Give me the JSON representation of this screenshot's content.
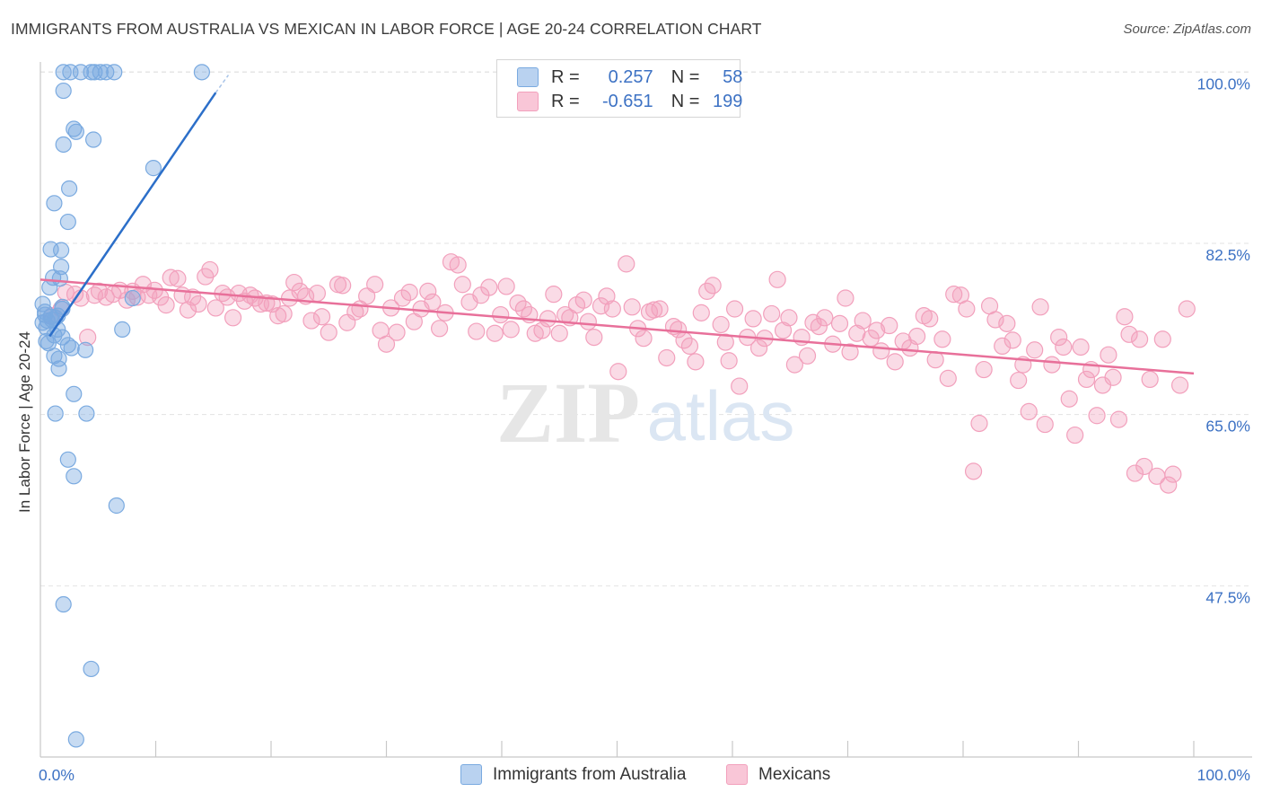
{
  "title": "IMMIGRANTS FROM AUSTRALIA VS MEXICAN IN LABOR FORCE | AGE 20-24 CORRELATION CHART",
  "source": "Source: ZipAtlas.com",
  "watermark": {
    "zip": "ZIP",
    "atlas": "atlas"
  },
  "legend": {
    "r_label": "R =",
    "n_label": "N =",
    "series": [
      {
        "r": "0.257",
        "n": "58"
      },
      {
        "r": "-0.651",
        "n": "199"
      }
    ]
  },
  "chart_data": {
    "type": "scatter",
    "title": "IMMIGRANTS FROM AUSTRALIA VS MEXICAN IN LABOR FORCE | AGE 20-24 CORRELATION CHART",
    "xlabel": "",
    "ylabel": "In Labor Force | Age 20-24",
    "xlim": [
      0,
      100
    ],
    "ylim": [
      30,
      101.5
    ],
    "x_tick_labels": [
      "0.0%",
      "100.0%"
    ],
    "y_ticks": [
      47.5,
      65.0,
      82.5,
      100.0
    ],
    "y_tick_labels": [
      "47.5%",
      "65.0%",
      "82.5%",
      "100.0%"
    ],
    "colors": {
      "australia": "#7aaae0",
      "mexicans": "#f2a0bc",
      "australia_line": "#2c6fc9",
      "mexicans_line": "#e8709a",
      "tick_label": "#3d72c4"
    },
    "series": [
      {
        "name": "Immigrants from Australia",
        "r": 0.257,
        "n": 58,
        "trend": {
          "x0": 0.8,
          "y0": 73.0,
          "x1": 15.2,
          "y1": 97.9,
          "dash_to_x": 16.3,
          "dash_to_y": 99.7
        },
        "points": [
          [
            2.0,
            100
          ],
          [
            2.6,
            100
          ],
          [
            3.5,
            100
          ],
          [
            4.4,
            100
          ],
          [
            4.7,
            100
          ],
          [
            5.2,
            100
          ],
          [
            5.7,
            100
          ],
          [
            6.4,
            100
          ],
          [
            14.0,
            100
          ],
          [
            2.0,
            98.1
          ],
          [
            2.9,
            94.2
          ],
          [
            2.0,
            92.6
          ],
          [
            4.6,
            93.1
          ],
          [
            3.1,
            93.9
          ],
          [
            9.8,
            90.2
          ],
          [
            2.5,
            88.1
          ],
          [
            1.2,
            86.6
          ],
          [
            2.4,
            84.7
          ],
          [
            0.9,
            81.9
          ],
          [
            1.8,
            81.8
          ],
          [
            1.8,
            80.1
          ],
          [
            1.1,
            79.0
          ],
          [
            1.7,
            78.9
          ],
          [
            0.8,
            78.0
          ],
          [
            8.0,
            76.9
          ],
          [
            0.2,
            76.3
          ],
          [
            1.9,
            76.0
          ],
          [
            1.9,
            75.8
          ],
          [
            0.4,
            75.2
          ],
          [
            0.9,
            75.0
          ],
          [
            1.3,
            74.9
          ],
          [
            0.6,
            74.6
          ],
          [
            1.0,
            74.7
          ],
          [
            1.5,
            75.1
          ],
          [
            0.2,
            74.4
          ],
          [
            0.5,
            73.9
          ],
          [
            1.5,
            73.7
          ],
          [
            7.1,
            73.7
          ],
          [
            1.9,
            72.9
          ],
          [
            0.5,
            72.5
          ],
          [
            0.7,
            72.3
          ],
          [
            2.4,
            72.1
          ],
          [
            2.7,
            71.8
          ],
          [
            3.9,
            71.6
          ],
          [
            1.2,
            71.0
          ],
          [
            1.6,
            70.7
          ],
          [
            1.6,
            69.7
          ],
          [
            2.9,
            67.1
          ],
          [
            1.3,
            65.1
          ],
          [
            4.0,
            65.1
          ],
          [
            2.4,
            60.4
          ],
          [
            2.9,
            58.7
          ],
          [
            6.6,
            55.7
          ],
          [
            2.0,
            45.6
          ],
          [
            4.4,
            39.0
          ],
          [
            3.1,
            31.8
          ],
          [
            0.4,
            75.5
          ],
          [
            1.2,
            73.1
          ]
        ]
      },
      {
        "name": "Mexicans",
        "r": -0.651,
        "n": 199,
        "trend": {
          "x0": 0.0,
          "y0": 78.8,
          "x1": 100.0,
          "y1": 69.2
        },
        "points": [
          [
            1.0,
            75.1
          ],
          [
            1.8,
            75.8
          ],
          [
            2.2,
            77.5
          ],
          [
            3.0,
            77.3
          ],
          [
            3.5,
            76.9
          ],
          [
            4.1,
            72.9
          ],
          [
            4.7,
            77.2
          ],
          [
            5.1,
            77.6
          ],
          [
            5.7,
            77.0
          ],
          [
            6.3,
            77.3
          ],
          [
            6.9,
            77.7
          ],
          [
            7.5,
            76.7
          ],
          [
            8.0,
            77.6
          ],
          [
            8.4,
            77.0
          ],
          [
            8.9,
            78.3
          ],
          [
            9.4,
            77.2
          ],
          [
            9.9,
            77.7
          ],
          [
            10.4,
            77.0
          ],
          [
            10.9,
            76.2
          ],
          [
            11.3,
            79.0
          ],
          [
            11.9,
            78.9
          ],
          [
            12.3,
            77.2
          ],
          [
            12.8,
            75.7
          ],
          [
            13.2,
            77.0
          ],
          [
            13.7,
            76.3
          ],
          [
            14.3,
            79.1
          ],
          [
            14.7,
            79.8
          ],
          [
            15.2,
            75.9
          ],
          [
            15.8,
            77.4
          ],
          [
            16.2,
            77.0
          ],
          [
            16.7,
            74.9
          ],
          [
            17.2,
            77.4
          ],
          [
            17.7,
            76.6
          ],
          [
            18.2,
            77.2
          ],
          [
            18.6,
            76.9
          ],
          [
            19.1,
            76.3
          ],
          [
            19.6,
            76.4
          ],
          [
            20.1,
            76.3
          ],
          [
            20.6,
            75.1
          ],
          [
            21.1,
            75.3
          ],
          [
            21.6,
            76.9
          ],
          [
            22.0,
            78.5
          ],
          [
            22.5,
            77.6
          ],
          [
            23.0,
            77.1
          ],
          [
            23.5,
            74.6
          ],
          [
            24.0,
            77.4
          ],
          [
            24.4,
            75.0
          ],
          [
            25.0,
            73.4
          ],
          [
            25.8,
            78.3
          ],
          [
            26.2,
            78.2
          ],
          [
            26.6,
            74.4
          ],
          [
            27.3,
            75.5
          ],
          [
            27.7,
            75.8
          ],
          [
            28.3,
            77.1
          ],
          [
            29.0,
            78.3
          ],
          [
            29.5,
            73.6
          ],
          [
            30.0,
            72.2
          ],
          [
            30.4,
            75.9
          ],
          [
            30.9,
            73.4
          ],
          [
            31.4,
            76.9
          ],
          [
            32.0,
            77.5
          ],
          [
            32.4,
            74.5
          ],
          [
            33.0,
            75.8
          ],
          [
            33.6,
            77.6
          ],
          [
            34.0,
            76.5
          ],
          [
            34.6,
            73.8
          ],
          [
            35.1,
            75.4
          ],
          [
            35.6,
            80.6
          ],
          [
            36.2,
            80.3
          ],
          [
            36.6,
            78.3
          ],
          [
            37.2,
            76.5
          ],
          [
            37.8,
            73.5
          ],
          [
            38.2,
            77.2
          ],
          [
            38.9,
            78.0
          ],
          [
            39.4,
            73.3
          ],
          [
            39.9,
            75.2
          ],
          [
            40.4,
            78.1
          ],
          [
            40.8,
            73.7
          ],
          [
            41.4,
            76.4
          ],
          [
            41.9,
            75.8
          ],
          [
            42.4,
            75.2
          ],
          [
            42.9,
            73.3
          ],
          [
            43.5,
            73.6
          ],
          [
            44.0,
            74.8
          ],
          [
            44.5,
            77.3
          ],
          [
            45.0,
            73.3
          ],
          [
            45.5,
            75.2
          ],
          [
            45.9,
            74.9
          ],
          [
            46.5,
            76.2
          ],
          [
            47.1,
            76.7
          ],
          [
            47.5,
            74.5
          ],
          [
            48.0,
            72.9
          ],
          [
            48.6,
            76.1
          ],
          [
            49.1,
            77.1
          ],
          [
            49.6,
            75.8
          ],
          [
            50.1,
            69.4
          ],
          [
            50.8,
            80.4
          ],
          [
            51.3,
            76.0
          ],
          [
            51.8,
            73.8
          ],
          [
            52.3,
            72.8
          ],
          [
            52.8,
            75.5
          ],
          [
            53.2,
            75.7
          ],
          [
            53.7,
            75.8
          ],
          [
            54.3,
            70.8
          ],
          [
            54.9,
            74.0
          ],
          [
            55.3,
            73.7
          ],
          [
            55.8,
            72.6
          ],
          [
            56.3,
            72.0
          ],
          [
            56.8,
            70.4
          ],
          [
            57.3,
            75.4
          ],
          [
            57.8,
            77.6
          ],
          [
            58.3,
            78.2
          ],
          [
            59.0,
            74.2
          ],
          [
            59.4,
            72.4
          ],
          [
            59.7,
            70.5
          ],
          [
            60.2,
            75.8
          ],
          [
            60.6,
            67.9
          ],
          [
            61.3,
            72.9
          ],
          [
            61.8,
            74.8
          ],
          [
            62.3,
            71.8
          ],
          [
            62.8,
            72.8
          ],
          [
            63.4,
            75.3
          ],
          [
            63.9,
            78.8
          ],
          [
            64.4,
            73.6
          ],
          [
            64.9,
            74.9
          ],
          [
            65.4,
            70.1
          ],
          [
            66.0,
            72.9
          ],
          [
            66.5,
            71.0
          ],
          [
            67.0,
            74.4
          ],
          [
            67.5,
            74.0
          ],
          [
            68.0,
            74.9
          ],
          [
            68.7,
            72.2
          ],
          [
            69.3,
            74.3
          ],
          [
            69.8,
            76.9
          ],
          [
            70.2,
            71.4
          ],
          [
            70.8,
            73.3
          ],
          [
            71.3,
            74.6
          ],
          [
            72.0,
            72.8
          ],
          [
            72.5,
            73.6
          ],
          [
            72.9,
            71.5
          ],
          [
            73.6,
            74.1
          ],
          [
            74.1,
            70.4
          ],
          [
            74.8,
            72.5
          ],
          [
            75.4,
            71.8
          ],
          [
            76.0,
            73.0
          ],
          [
            76.6,
            75.1
          ],
          [
            77.1,
            74.8
          ],
          [
            77.6,
            70.6
          ],
          [
            78.2,
            72.7
          ],
          [
            78.7,
            68.7
          ],
          [
            79.2,
            77.3
          ],
          [
            79.8,
            77.2
          ],
          [
            80.3,
            75.8
          ],
          [
            80.9,
            59.2
          ],
          [
            81.4,
            64.1
          ],
          [
            81.8,
            69.6
          ],
          [
            82.3,
            76.1
          ],
          [
            82.8,
            74.7
          ],
          [
            83.4,
            72.0
          ],
          [
            83.8,
            74.3
          ],
          [
            84.3,
            72.6
          ],
          [
            84.8,
            68.5
          ],
          [
            85.2,
            70.1
          ],
          [
            85.7,
            65.3
          ],
          [
            86.2,
            71.6
          ],
          [
            86.7,
            76.0
          ],
          [
            87.1,
            64.0
          ],
          [
            87.7,
            70.1
          ],
          [
            88.3,
            72.9
          ],
          [
            88.7,
            71.9
          ],
          [
            89.2,
            66.6
          ],
          [
            89.7,
            62.9
          ],
          [
            90.2,
            71.9
          ],
          [
            90.7,
            68.6
          ],
          [
            91.1,
            69.6
          ],
          [
            91.6,
            64.9
          ],
          [
            92.1,
            68.0
          ],
          [
            92.6,
            71.1
          ],
          [
            93.0,
            68.8
          ],
          [
            93.5,
            64.5
          ],
          [
            94.0,
            75.0
          ],
          [
            94.4,
            73.2
          ],
          [
            94.9,
            59.0
          ],
          [
            95.3,
            72.7
          ],
          [
            95.7,
            59.7
          ],
          [
            96.2,
            68.6
          ],
          [
            96.8,
            58.7
          ],
          [
            97.3,
            72.7
          ],
          [
            97.8,
            57.8
          ],
          [
            98.2,
            58.9
          ],
          [
            98.8,
            68.0
          ],
          [
            99.4,
            75.8
          ]
        ]
      }
    ]
  },
  "bottom_legend": [
    "Immigrants from Australia",
    "Mexicans"
  ]
}
